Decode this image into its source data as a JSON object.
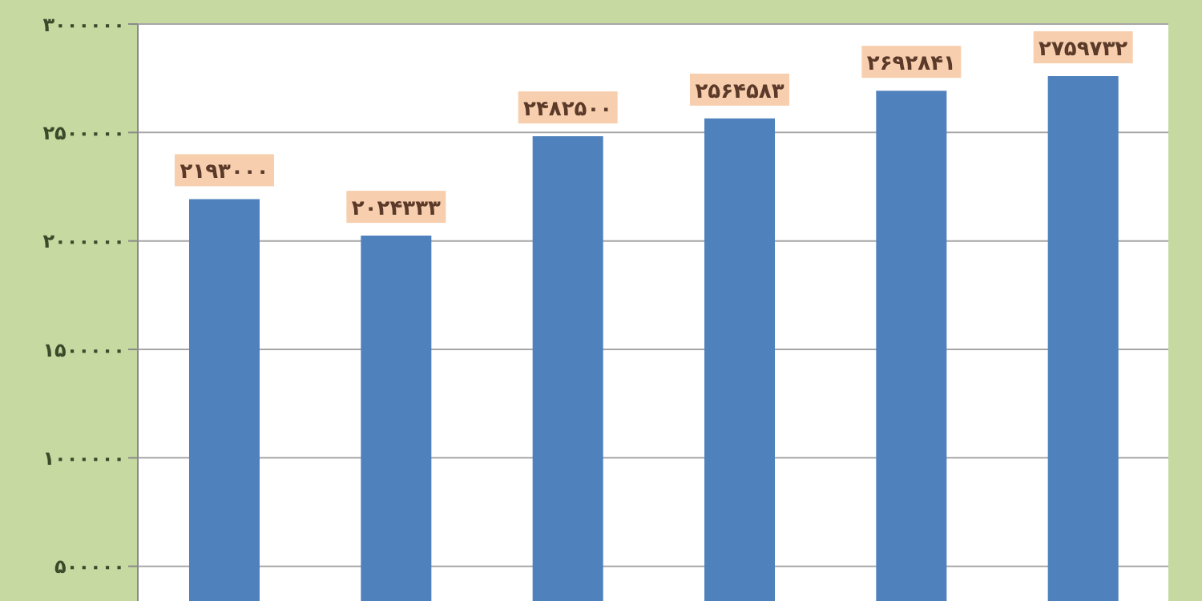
{
  "chart_data": {
    "type": "bar",
    "categories": [
      null,
      null,
      null,
      null,
      null,
      null
    ],
    "values": [
      2193000,
      2024333,
      2482500,
      2564583,
      2692841,
      2759732
    ],
    "value_labels": [
      "۲۱۹۳۰۰۰",
      "۲۰۲۴۳۳۳",
      "۲۴۸۲۵۰۰",
      "۲۵۶۴۵۸۳",
      "۲۶۹۲۸۴۱",
      "۲۷۵۹۷۳۲"
    ],
    "color": "#4f81bd",
    "ylim": [
      340000,
      3000000
    ],
    "yticks": [
      {
        "value": 500000,
        "label": "۵۰۰۰۰۰"
      },
      {
        "value": 1000000,
        "label": "۱۰۰۰۰۰۰"
      },
      {
        "value": 1500000,
        "label": "۱۵۰۰۰۰۰"
      },
      {
        "value": 2000000,
        "label": "۲۰۰۰۰۰۰"
      },
      {
        "value": 2500000,
        "label": "۲۵۰۰۰۰۰"
      },
      {
        "value": 3000000,
        "label": "۳۰۰۰۰۰۰"
      }
    ],
    "grid": "y",
    "tick_labels": "y"
  }
}
